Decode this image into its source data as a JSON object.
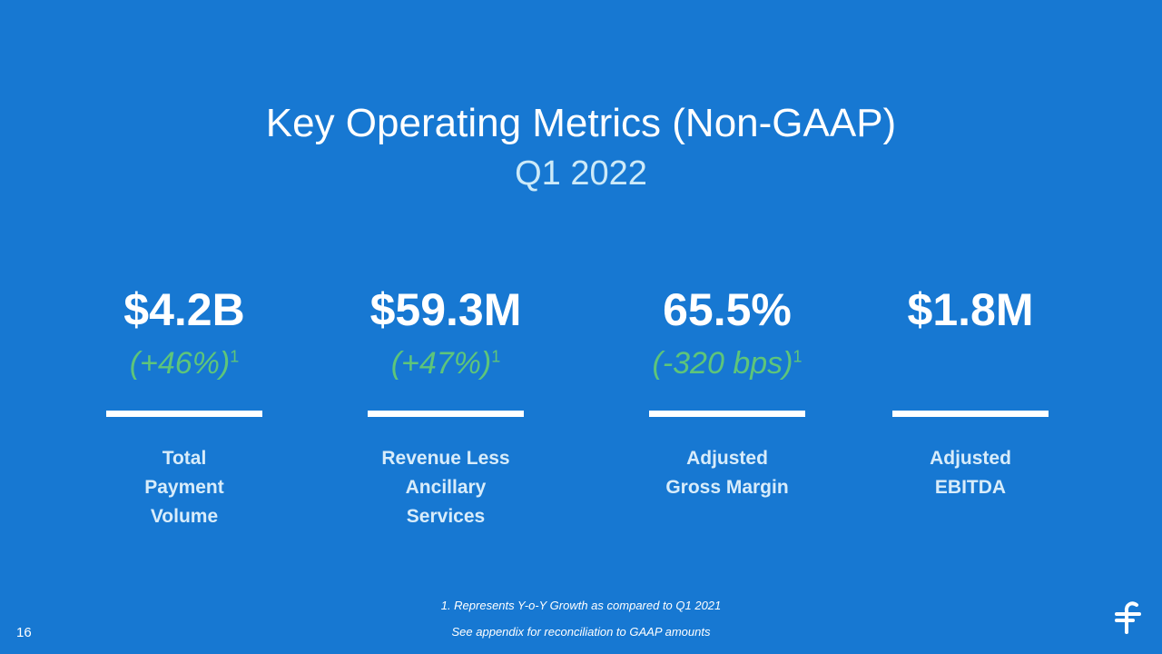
{
  "slide": {
    "title": "Key Operating Metrics (Non-GAAP)",
    "subtitle": "Q1 2022",
    "metrics": [
      {
        "value": "$4.2B",
        "change": "(+46%)",
        "footnote_mark": "1",
        "label_lines": [
          "Total",
          "Payment",
          "Volume"
        ]
      },
      {
        "value": "$59.3M",
        "change": "(+47%)",
        "footnote_mark": "1",
        "label_lines": [
          "Revenue Less",
          "Ancillary",
          "Services"
        ]
      },
      {
        "value": "65.5%",
        "change": "(-320 bps)",
        "footnote_mark": "1",
        "label_lines": [
          "Adjusted",
          "Gross Margin"
        ]
      },
      {
        "value": "$1.8M",
        "change": "",
        "footnote_mark": "",
        "label_lines": [
          "Adjusted",
          "EBITDA"
        ]
      }
    ],
    "footnotes": [
      "1. Represents Y-o-Y Growth as compared to Q1 2021",
      "See appendix for reconciliation to GAAP amounts"
    ],
    "page_number": "16"
  },
  "colors": {
    "background": "#1778d2",
    "subtitle": "#cdeaf8",
    "change": "#5ec57a",
    "label": "#d8ecfa"
  },
  "icons": {
    "logo": "brand-logo-icon"
  }
}
